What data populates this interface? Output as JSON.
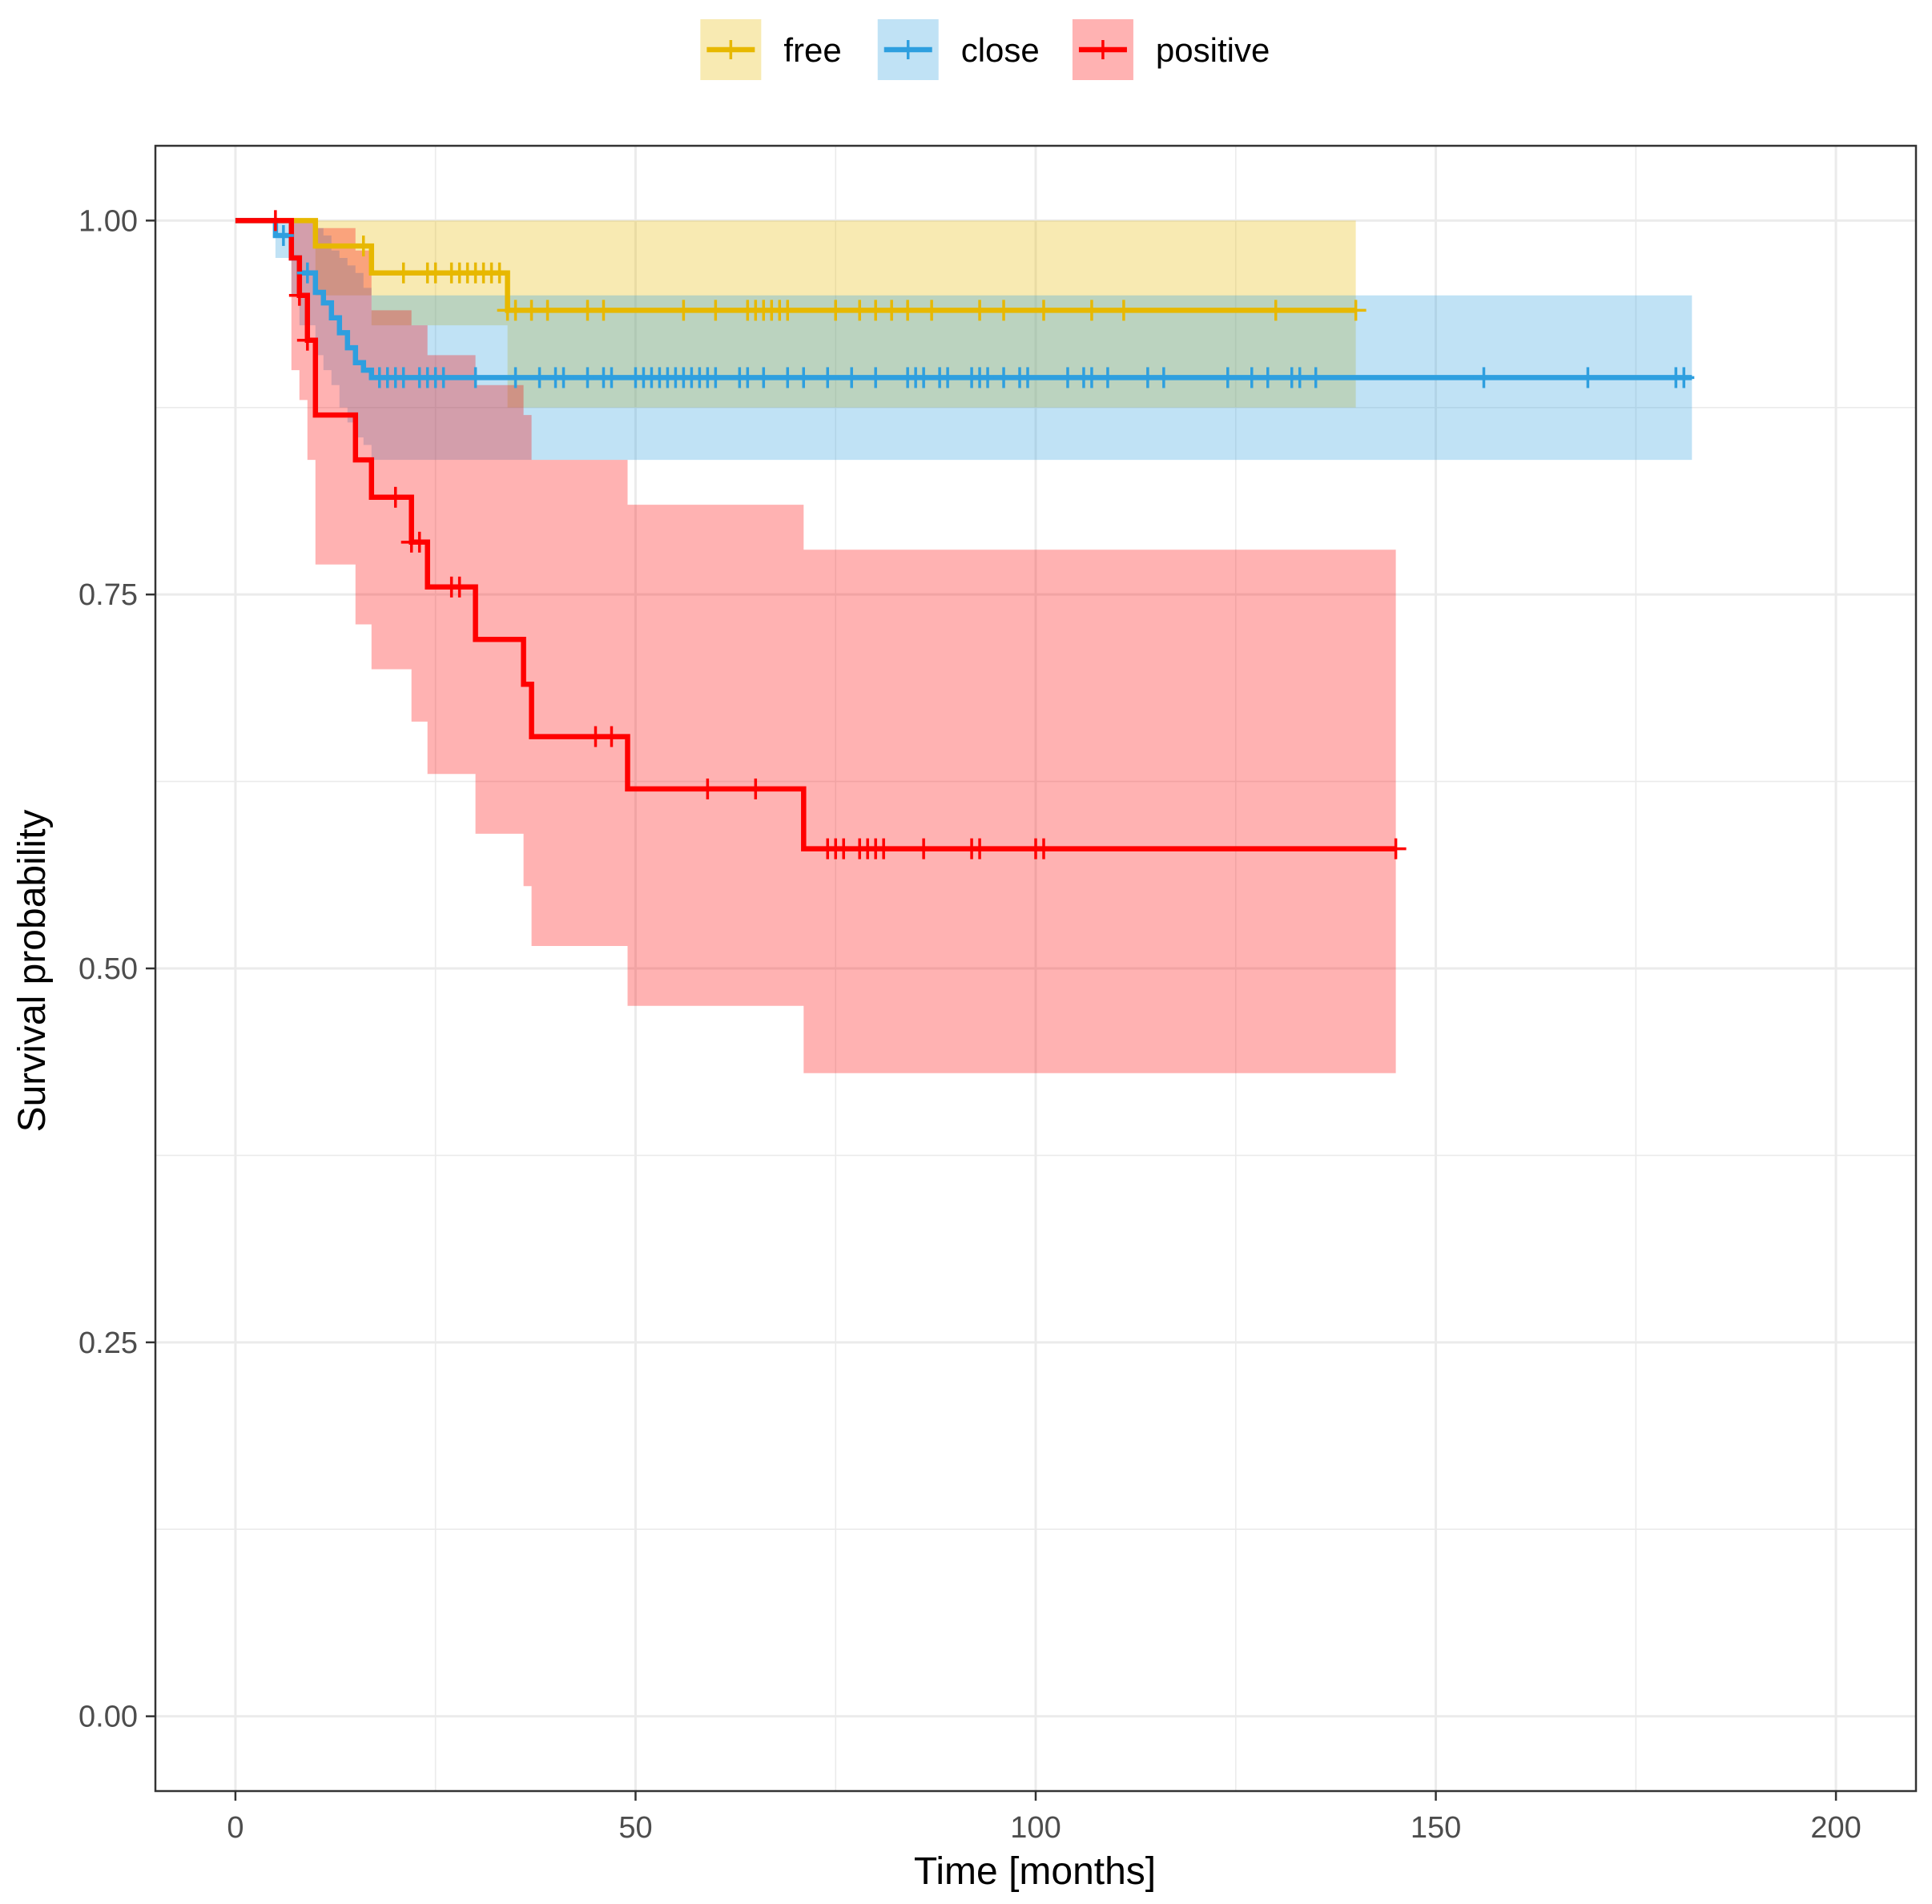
{
  "chart_data": {
    "type": "line",
    "subtype": "kaplan-meier",
    "title": "",
    "xlabel": "Time [months]",
    "ylabel": "Survival probability",
    "xlim": [
      -10,
      210
    ],
    "ylim": [
      -0.05,
      1.05
    ],
    "xticks": [
      0,
      50,
      100,
      150,
      200
    ],
    "xtick_labels": [
      "0",
      "50",
      "100",
      "150",
      "200"
    ],
    "yticks": [
      0,
      0.25,
      0.5,
      0.75,
      1.0
    ],
    "ytick_labels": [
      "0.00",
      "0.25",
      "0.50",
      "0.75",
      "1.00"
    ],
    "grid": true,
    "legend_position": "top",
    "series": [
      {
        "name": "free",
        "color": "#E7B800",
        "step_x": [
          0,
          10,
          17,
          34,
          140
        ],
        "step_y": [
          1.0,
          0.983,
          0.965,
          0.94,
          0.94
        ],
        "ci_x": [
          0,
          10,
          17,
          34,
          140
        ],
        "ci_upper": [
          1.0,
          1.0,
          1.0,
          1.0,
          1.0
        ],
        "ci_lower": [
          1.0,
          0.95,
          0.93,
          0.875,
          0.875
        ],
        "censor_x": [
          16,
          21,
          24,
          25,
          27,
          29,
          28,
          30,
          31,
          32,
          33,
          34,
          35,
          37,
          39,
          44,
          46,
          56,
          60,
          64,
          65,
          66,
          67,
          68,
          69,
          75,
          78,
          80,
          82,
          84,
          87,
          93,
          96,
          101,
          107,
          111,
          130,
          140
        ],
        "censor_y": [
          0.983,
          0.965,
          0.965,
          0.965,
          0.965,
          0.965,
          0.965,
          0.965,
          0.965,
          0.965,
          0.965,
          0.94,
          0.94,
          0.94,
          0.94,
          0.94,
          0.94,
          0.94,
          0.94,
          0.94,
          0.94,
          0.94,
          0.94,
          0.94,
          0.94,
          0.94,
          0.94,
          0.94,
          0.94,
          0.94,
          0.94,
          0.94,
          0.94,
          0.94,
          0.94,
          0.94,
          0.94,
          0.94
        ]
      },
      {
        "name": "close",
        "color": "#2E9FDF",
        "step_x": [
          0,
          5,
          7,
          8,
          10,
          11,
          12,
          13,
          14,
          15,
          16,
          17,
          182
        ],
        "step_y": [
          1.0,
          0.99,
          0.975,
          0.965,
          0.952,
          0.945,
          0.935,
          0.925,
          0.915,
          0.905,
          0.9,
          0.895,
          0.895
        ],
        "ci_x": [
          0,
          5,
          7,
          8,
          10,
          11,
          12,
          13,
          14,
          15,
          16,
          17,
          37,
          182
        ],
        "ci_upper": [
          1.0,
          1.0,
          1.0,
          1.0,
          0.995,
          0.99,
          0.98,
          0.975,
          0.97,
          0.965,
          0.955,
          0.95,
          0.95,
          0.95
        ],
        "ci_lower": [
          1.0,
          0.975,
          0.95,
          0.93,
          0.91,
          0.9,
          0.89,
          0.875,
          0.865,
          0.855,
          0.85,
          0.84,
          0.84,
          0.84
        ],
        "censor_x": [
          6,
          9,
          18,
          19,
          20,
          21,
          23,
          24,
          25,
          26,
          30,
          35,
          38,
          40,
          41,
          44,
          46,
          47,
          50,
          51,
          52,
          53,
          54,
          55,
          56,
          57,
          58,
          59,
          60,
          63,
          64,
          66,
          69,
          71,
          74,
          77,
          80,
          84,
          85,
          86,
          88,
          89,
          92,
          93,
          94,
          96,
          98,
          99,
          104,
          106,
          107,
          109,
          114,
          116,
          124,
          127,
          129,
          132,
          133,
          135,
          156,
          169,
          180,
          181
        ],
        "censor_y": [
          0.99,
          0.965,
          0.895,
          0.895,
          0.895,
          0.895,
          0.895,
          0.895,
          0.895,
          0.895,
          0.895,
          0.895,
          0.895,
          0.895,
          0.895,
          0.895,
          0.895,
          0.895,
          0.895,
          0.895,
          0.895,
          0.895,
          0.895,
          0.895,
          0.895,
          0.895,
          0.895,
          0.895,
          0.895,
          0.895,
          0.895,
          0.895,
          0.895,
          0.895,
          0.895,
          0.895,
          0.895,
          0.895,
          0.895,
          0.895,
          0.895,
          0.895,
          0.895,
          0.895,
          0.895,
          0.895,
          0.895,
          0.895,
          0.895,
          0.895,
          0.895,
          0.895,
          0.895,
          0.895,
          0.895,
          0.895,
          0.895,
          0.895,
          0.895,
          0.895,
          0.895,
          0.895,
          0.895,
          0.895
        ]
      },
      {
        "name": "positive",
        "color": "#FF0000",
        "step_x": [
          0,
          7,
          8,
          9,
          10,
          15,
          17,
          22,
          24,
          30,
          36,
          37,
          49,
          71,
          145
        ],
        "step_y": [
          1.0,
          0.975,
          0.95,
          0.92,
          0.87,
          0.84,
          0.815,
          0.785,
          0.755,
          0.72,
          0.69,
          0.655,
          0.62,
          0.58,
          0.58
        ],
        "ci_x": [
          0,
          7,
          8,
          9,
          10,
          15,
          17,
          22,
          24,
          30,
          36,
          37,
          49,
          71,
          145
        ],
        "ci_upper": [
          1.0,
          1.0,
          1.0,
          1.0,
          0.995,
          0.98,
          0.94,
          0.93,
          0.91,
          0.89,
          0.87,
          0.84,
          0.81,
          0.78,
          0.78
        ],
        "ci_lower": [
          1.0,
          0.9,
          0.88,
          0.84,
          0.77,
          0.73,
          0.7,
          0.665,
          0.63,
          0.59,
          0.555,
          0.515,
          0.475,
          0.43,
          0.43
        ],
        "censor_x": [
          5,
          8,
          9,
          20,
          22,
          23,
          27,
          28,
          45,
          47,
          59,
          65,
          74,
          75,
          76,
          78,
          79,
          80,
          81,
          86,
          92,
          93,
          100,
          101,
          145
        ],
        "censor_y": [
          1.0,
          0.95,
          0.92,
          0.815,
          0.785,
          0.785,
          0.755,
          0.755,
          0.655,
          0.655,
          0.62,
          0.62,
          0.58,
          0.58,
          0.58,
          0.58,
          0.58,
          0.58,
          0.58,
          0.58,
          0.58,
          0.58,
          0.58,
          0.58,
          0.58
        ]
      }
    ]
  }
}
